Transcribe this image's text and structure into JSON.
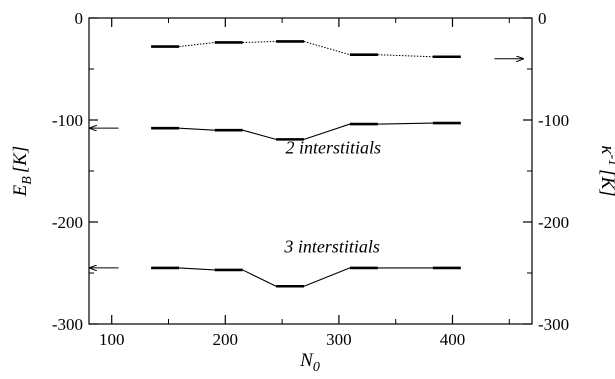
{
  "chart_data": {
    "type": "line",
    "xlabel": "N",
    "xlabel_sub": "0",
    "ylabel_left": "E",
    "ylabel_left_sub": "B",
    "ylabel_left_unit": "[K]",
    "ylabel_right": "κ",
    "ylabel_right_sup": "-1",
    "ylabel_right_unit": "[K]",
    "xlim": [
      80,
      470
    ],
    "ylim": [
      -300,
      0
    ],
    "xticks": [
      100,
      200,
      300,
      400
    ],
    "yticks": [
      0,
      -100,
      -200,
      -300
    ],
    "grid": false,
    "series": [
      {
        "axis": "right",
        "style": "dotted",
        "points": [
          {
            "x": 147,
            "y": -28
          },
          {
            "x": 203,
            "y": -24
          },
          {
            "x": 257,
            "y": -23
          },
          {
            "x": 322,
            "y": -36
          },
          {
            "x": 395,
            "y": -38
          }
        ]
      },
      {
        "axis": "left",
        "style": "solid",
        "points": [
          {
            "x": 147,
            "y": -108
          },
          {
            "x": 203,
            "y": -110
          },
          {
            "x": 257,
            "y": -119
          },
          {
            "x": 322,
            "y": -104
          },
          {
            "x": 395,
            "y": -103
          }
        ]
      },
      {
        "axis": "left",
        "style": "solid",
        "points": [
          {
            "x": 147,
            "y": -245
          },
          {
            "x": 203,
            "y": -247
          },
          {
            "x": 257,
            "y": -263
          },
          {
            "x": 322,
            "y": -245
          },
          {
            "x": 395,
            "y": -245
          }
        ]
      }
    ],
    "annotations": [
      {
        "text": "2 interstitials",
        "x": 295,
        "y": -133
      },
      {
        "text": "3 interstitials",
        "x": 294,
        "y": -230
      }
    ],
    "arrows": [
      {
        "direction": "right",
        "x_from": 437,
        "x_to": 462,
        "y": -40
      },
      {
        "direction": "left",
        "x_from": 106,
        "x_to": 81,
        "y": -108
      },
      {
        "direction": "left",
        "x_from": 106,
        "x_to": 81,
        "y": -245
      }
    ]
  }
}
